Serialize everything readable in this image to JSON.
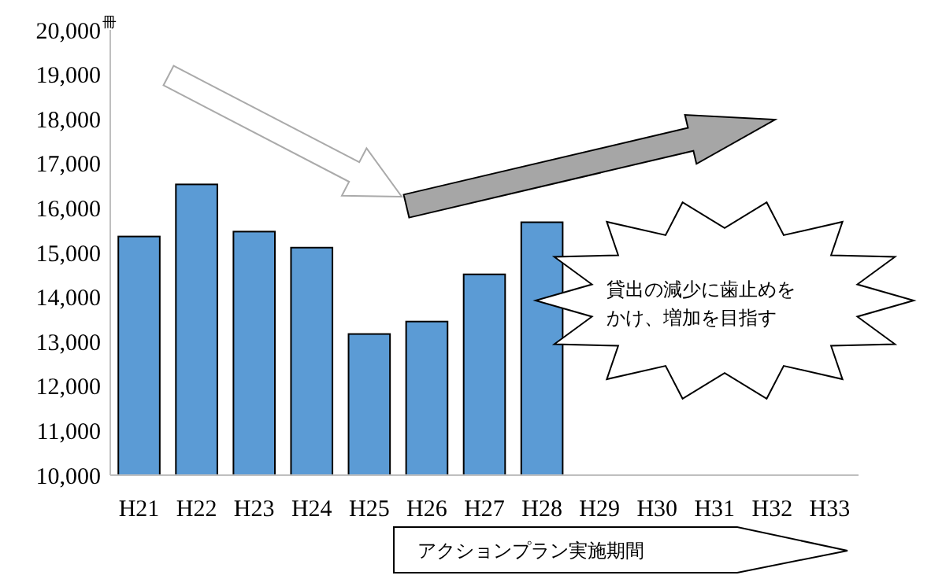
{
  "chart_data": {
    "type": "bar",
    "ylabel": "冊",
    "categories": [
      "H21",
      "H22",
      "H23",
      "H24",
      "H25",
      "H26",
      "H27",
      "H28",
      "H29",
      "H30",
      "H31",
      "H32",
      "H33"
    ],
    "values": [
      15360,
      16530,
      15470,
      15110,
      13170,
      13450,
      14510,
      15680,
      null,
      null,
      null,
      null,
      null
    ],
    "color": "#5b9bd5",
    "ylim": [
      10000,
      20000
    ],
    "yticks": [
      {
        "value": 10000,
        "label": "10,000"
      },
      {
        "value": 11000,
        "label": "11,000"
      },
      {
        "value": 12000,
        "label": "12,000"
      },
      {
        "value": 13000,
        "label": "13,000"
      },
      {
        "value": 14000,
        "label": "14,000"
      },
      {
        "value": 15000,
        "label": "15,000"
      },
      {
        "value": 16000,
        "label": "16,000"
      },
      {
        "value": 17000,
        "label": "17,000"
      },
      {
        "value": 18000,
        "label": "18,000"
      },
      {
        "value": 19000,
        "label": "19,000"
      },
      {
        "value": 20000,
        "label": "20,000"
      }
    ],
    "grid": false,
    "annotations": [
      "貸出の減少に歯止めをかけ、増加を目指す",
      "アクションプラン実施期間"
    ]
  }
}
